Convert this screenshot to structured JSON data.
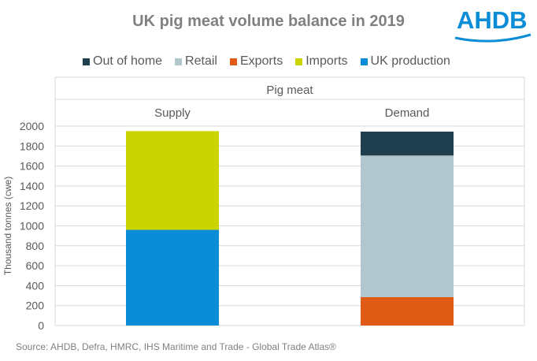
{
  "chart_data": {
    "type": "bar",
    "stacked": true,
    "title": "UK pig meat volume balance in 2019",
    "group_label": "Pig meat",
    "categories": [
      "Supply",
      "Demand"
    ],
    "series": [
      {
        "name": "Out of home",
        "color": "#1f3f4f",
        "values": [
          0,
          240
        ]
      },
      {
        "name": "Retail",
        "color": "#b2c7cd",
        "values": [
          0,
          1420
        ]
      },
      {
        "name": "Exports",
        "color": "#df5b16",
        "values": [
          0,
          285
        ]
      },
      {
        "name": "Imports",
        "color": "#c9d400",
        "values": [
          990,
          0
        ]
      },
      {
        "name": "UK production",
        "color": "#0a8dd6",
        "values": [
          960,
          0
        ]
      }
    ],
    "stack_order": [
      "UK production",
      "Imports",
      "Exports",
      "Retail",
      "Out of home"
    ],
    "ylabel": "Thousand  tonnes (cwe)",
    "xlabel": "",
    "ylim": [
      0,
      2000
    ],
    "yticks": [
      0,
      200,
      400,
      600,
      800,
      1000,
      1200,
      1400,
      1600,
      1800,
      2000
    ],
    "grid": true,
    "legend_position": "top"
  },
  "logo_text": "AHDB",
  "source": "Source: AHDB, Defra, HMRC, IHS Maritime and Trade  - Global Trade  Atlas®"
}
